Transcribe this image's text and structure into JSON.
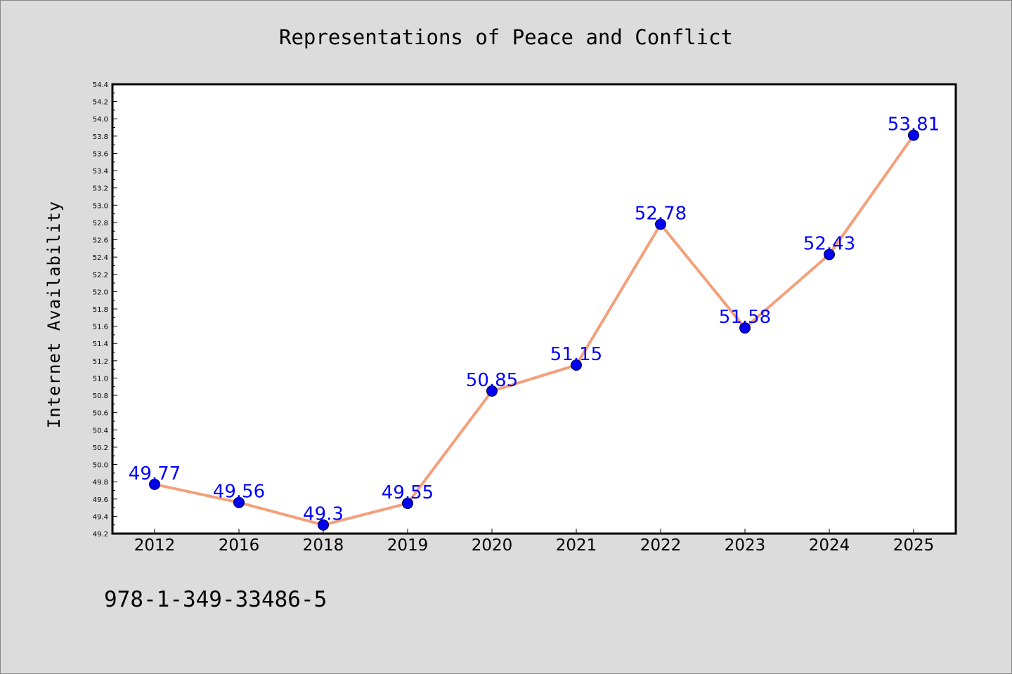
{
  "chart_data": {
    "type": "line",
    "title": "Representations of Peace and Conflict",
    "xlabel": "",
    "ylabel": "Internet Availability",
    "categories": [
      "2012",
      "2016",
      "2018",
      "2019",
      "2020",
      "2021",
      "2022",
      "2023",
      "2024",
      "2025"
    ],
    "values": [
      49.77,
      49.56,
      49.3,
      49.55,
      50.85,
      51.15,
      52.78,
      51.58,
      52.43,
      53.81
    ],
    "data_labels": [
      "49.77",
      "49.56",
      "49.3",
      "49.55",
      "50.85",
      "51.15",
      "52.78",
      "51.58",
      "52.43",
      "53.81"
    ],
    "ylim": [
      49.2,
      54.4
    ],
    "y_ticks": [
      49.2,
      49.4,
      49.6,
      49.8,
      50.0,
      50.2,
      50.4,
      50.6,
      50.8,
      51.0,
      51.2,
      51.4,
      51.6,
      51.8,
      52.0,
      52.2,
      52.4,
      52.6,
      52.8,
      53.0,
      53.2,
      53.4,
      53.6,
      53.8,
      54.0,
      54.2,
      54.4
    ],
    "grid": false,
    "colors": {
      "line": "#f4a07a",
      "marker": "#0000ee",
      "label": "#0000ff",
      "background": "#dcdcdc",
      "plot_area": "#ffffff"
    }
  },
  "footer": {
    "isbn": "978-1-349-33486-5"
  }
}
